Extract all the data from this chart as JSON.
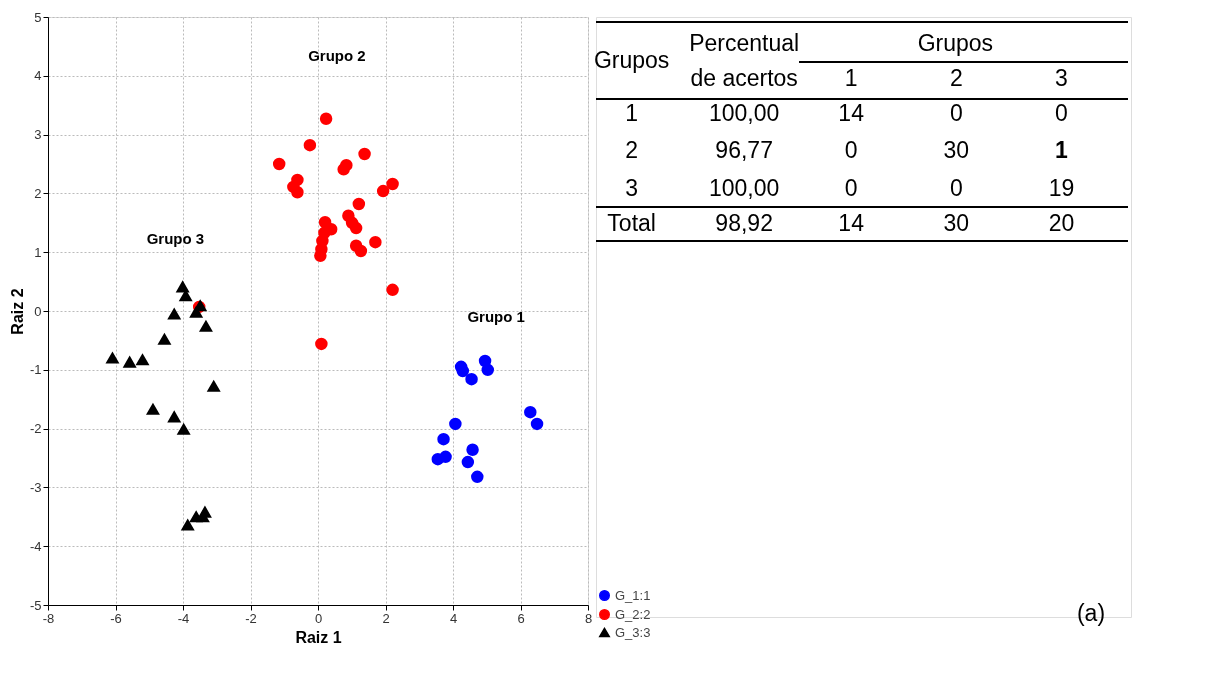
{
  "chart_data": [
    {
      "type": "scatter",
      "xlabel": "Raiz 1",
      "ylabel": "Raiz 2",
      "xlim": [
        -8,
        8
      ],
      "ylim": [
        -5,
        5
      ],
      "xticks": [
        -8,
        -6,
        -4,
        -2,
        0,
        2,
        4,
        6,
        8
      ],
      "yticks": [
        -5,
        -4,
        -3,
        -2,
        -1,
        0,
        1,
        2,
        3,
        4,
        5
      ],
      "grid": true,
      "legend": "bottom right",
      "series": [
        {
          "name": "G_1:1",
          "color": "#0000ff",
          "marker": "circle",
          "x": [
            4.24,
            4.29,
            4.55,
            4.95,
            5.03,
            6.29,
            6.49,
            4.07,
            3.72,
            3.55,
            3.78,
            4.58,
            4.44,
            4.72
          ],
          "values": [
            -0.95,
            -1.02,
            -1.16,
            -0.85,
            -1.0,
            -1.72,
            -1.92,
            -1.92,
            -2.18,
            -2.52,
            -2.48,
            -2.36,
            -2.57,
            -2.82
          ]
        },
        {
          "name": "G_2:2",
          "color": "#ff0000",
          "marker": "circle",
          "x": [
            0.24,
            -0.24,
            -1.15,
            -0.61,
            -0.73,
            -0.61,
            0.84,
            0.76,
            1.38,
            2.21,
            1.93,
            1.21,
            0.9,
            1.01,
            1.13,
            0.21,
            0.39,
            0.19,
            0.13,
            0.1,
            0.07,
            1.13,
            1.27,
            1.7,
            2.21,
            0.1,
            -3.52
          ],
          "values": [
            3.27,
            2.82,
            2.5,
            2.23,
            2.11,
            2.02,
            2.48,
            2.41,
            2.67,
            2.16,
            2.04,
            1.82,
            1.62,
            1.5,
            1.41,
            1.51,
            1.39,
            1.33,
            1.19,
            1.05,
            0.94,
            1.11,
            1.02,
            1.17,
            0.36,
            -0.56,
            0.07
          ]
        },
        {
          "name": "G_3:3",
          "color": "#000000",
          "marker": "triangle",
          "x": [
            -4.01,
            -3.92,
            -4.26,
            -3.61,
            -3.49,
            -3.32,
            -4.55,
            -6.09,
            -5.58,
            -5.2,
            -3.09,
            -4.89,
            -4.26,
            -3.98,
            -3.86,
            -3.61,
            -3.41,
            -3.35
          ],
          "values": [
            0.41,
            0.26,
            -0.05,
            -0.02,
            0.09,
            -0.26,
            -0.48,
            -0.8,
            -0.87,
            -0.83,
            -1.28,
            -1.67,
            -1.8,
            -2.01,
            -3.64,
            -3.5,
            -3.5,
            -3.42
          ]
        }
      ],
      "annotations": [
        "Grupo 1",
        "Grupo 2",
        "Grupo 3"
      ]
    },
    {
      "type": "other",
      "annotations": [
        "Grupos",
        "Percentual de acertos",
        "Grupos",
        "1",
        "2",
        "3",
        "1",
        "100,00",
        "14",
        "0",
        "0",
        "2",
        "96,77",
        "0",
        "30",
        "1",
        "3",
        "100,00",
        "0",
        "0",
        "19",
        "Total",
        "98,92",
        "14",
        "30",
        "20",
        "(a)"
      ]
    }
  ]
}
